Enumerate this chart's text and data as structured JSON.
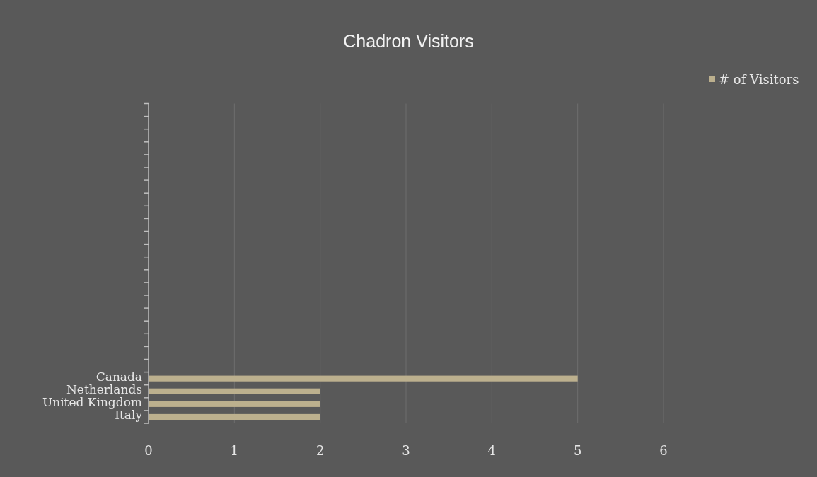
{
  "chart_data": {
    "type": "bar",
    "title": "Chadron Visitors",
    "orientation": "horizontal",
    "categories": [
      null,
      null,
      null,
      null,
      null,
      null,
      null,
      null,
      null,
      null,
      null,
      null,
      null,
      null,
      null,
      null,
      null,
      null,
      null,
      null,
      null,
      "Canada",
      "Netherlands",
      "United Kingdom",
      "Italy"
    ],
    "series": [
      {
        "name": "# of Visitors",
        "color": "#bcb08e",
        "values": [
          null,
          null,
          null,
          null,
          null,
          null,
          null,
          null,
          null,
          null,
          null,
          null,
          null,
          null,
          null,
          null,
          null,
          null,
          null,
          null,
          null,
          5,
          2,
          2,
          2
        ]
      }
    ],
    "xlim": [
      0,
      6
    ],
    "xticks": [
      0,
      1,
      2,
      3,
      4,
      5,
      6
    ],
    "grid": "x",
    "legend": "top right"
  }
}
